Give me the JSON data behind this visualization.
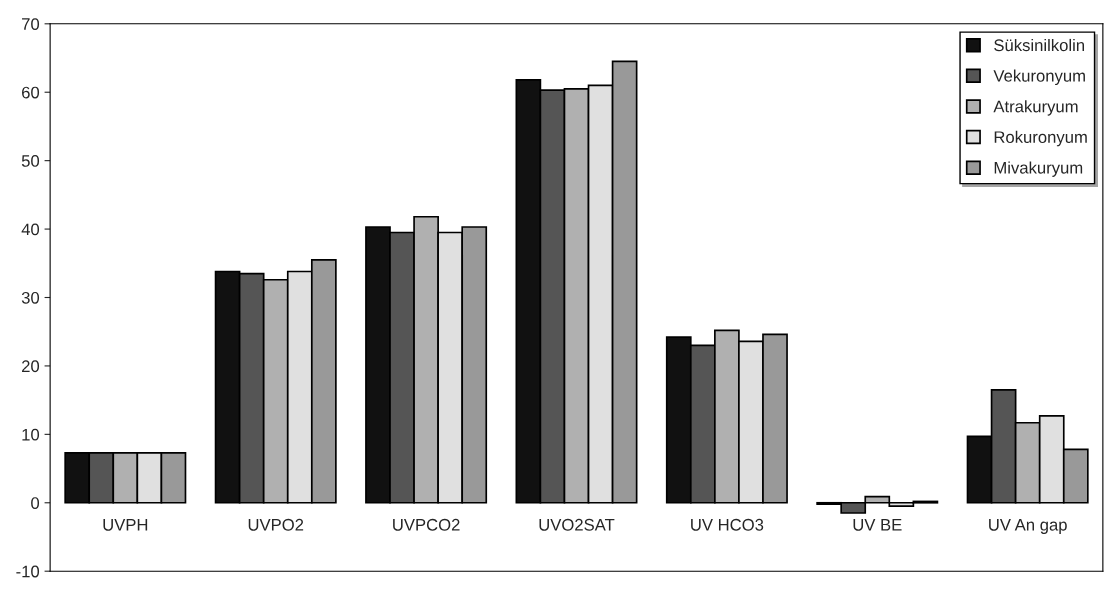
{
  "chart_data": {
    "type": "bar",
    "categories": [
      "UVPH",
      "UVPO2",
      "UVPCO2",
      "UVO2SAT",
      "UV HCO3",
      "UV BE",
      "UV An gap"
    ],
    "series": [
      {
        "name": "Süksinilkolin",
        "color": "#111111",
        "values": [
          7.3,
          33.8,
          40.3,
          61.8,
          24.2,
          -0.2,
          9.7
        ]
      },
      {
        "name": "Vekuronyum",
        "color": "#555555",
        "values": [
          7.3,
          33.5,
          39.5,
          60.3,
          23.0,
          -1.5,
          16.5
        ]
      },
      {
        "name": "Atrakuryum",
        "color": "#b0b0b0",
        "values": [
          7.3,
          32.6,
          41.8,
          60.5,
          25.2,
          0.9,
          11.7
        ]
      },
      {
        "name": "Rokuronyum",
        "color": "#e0e0e0",
        "values": [
          7.3,
          33.8,
          39.5,
          61.0,
          23.6,
          -0.5,
          12.7
        ]
      },
      {
        "name": "Mivakuryum",
        "color": "#999999",
        "values": [
          7.3,
          35.5,
          40.3,
          64.5,
          24.6,
          0.2,
          7.8
        ]
      }
    ],
    "ylim": [
      -10,
      70
    ],
    "yticks": [
      -10,
      0,
      10,
      20,
      30,
      40,
      50,
      60,
      70
    ],
    "grid": false,
    "legend": "top right"
  }
}
